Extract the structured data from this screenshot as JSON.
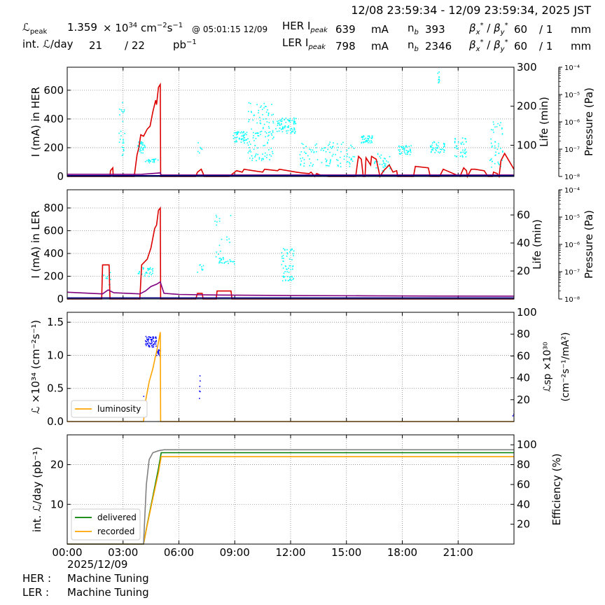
{
  "header": {
    "time_range": "12/08 23:59:34 - 12/09 23:59:34, 2025 JST",
    "lpeak_label": "ℒ",
    "lpeak_sub": "peak",
    "lpeak_value": "1.359",
    "lpeak_unit_pre": "× 10",
    "lpeak_exp": "34",
    "lpeak_unit": "cm",
    "lpeak_unit_exp1": "−2",
    "lpeak_unit_s": "s",
    "lpeak_unit_exp2": "−1",
    "lpeak_at": "@ 05:01:15 12/09",
    "intl_label": "int. ℒ/day",
    "intl_value1": "21",
    "intl_slash": "/ 22",
    "intl_unit": "pb",
    "intl_unit_exp": "−1",
    "her_label": "HER I",
    "her_sub": "peak",
    "her_value": "639",
    "her_unit": "mA",
    "ler_label": "LER I",
    "ler_sub": "peak",
    "ler_value": "798",
    "ler_unit": "mA",
    "nb_label": "n",
    "nb_sub": "b",
    "her_nb": "393",
    "ler_nb": "2346",
    "beta_label": "β",
    "beta_x": "x",
    "beta_y": "y",
    "beta_star": "*",
    "beta_slash": " / ",
    "her_beta": "60",
    "her_beta2": "/ 1",
    "ler_beta": "60",
    "ler_beta2": "/ 1",
    "beta_unit": "mm"
  },
  "footer": {
    "date": "2025/12/09",
    "her_status_label": "HER :",
    "her_status": "Machine Tuning",
    "ler_status_label": "LER :",
    "ler_status": "Machine Tuning"
  },
  "colors": {
    "current": "#dd0000",
    "purple": "#800080",
    "navy": "#000080",
    "cyan": "#00ffff",
    "blue": "#0000ff",
    "orange": "#ffa500",
    "green": "#008000",
    "gray": "#808080",
    "grid": "#808080"
  },
  "chart_data": [
    {
      "id": "her",
      "type": "line",
      "ylabel": "I (mA) in HER",
      "ylim": [
        0,
        760
      ],
      "yticks": [
        0,
        200,
        400,
        600
      ],
      "y2label": "Life (min)",
      "y2lim": [
        20,
        300
      ],
      "y2ticks": [
        100,
        200,
        300
      ],
      "y3label": "Pressure (Pa)",
      "y3ticks": [
        "10⁻⁸",
        "10⁻⁷",
        "10⁻⁶",
        "10⁻⁵",
        "10⁻⁴"
      ],
      "xlim": [
        0,
        24
      ],
      "xticks": [
        "00:00",
        "03:00",
        "06:00",
        "09:00",
        "12:00",
        "15:00",
        "18:00",
        "21:00"
      ],
      "grid": true,
      "series": [
        {
          "role": "current",
          "color": "#dd0000",
          "x": [
            0,
            2.3,
            2.32,
            2.45,
            2.47,
            3.6,
            3.75,
            3.85,
            3.95,
            4.1,
            4.3,
            4.45,
            4.6,
            4.75,
            4.8,
            4.9,
            5.0,
            5.02,
            5.05,
            6.9,
            7.0,
            7.1,
            7.2,
            7.3,
            7.35,
            8.7,
            9.0,
            9.1,
            9.4,
            9.5,
            10.0,
            10.5,
            10.6,
            11.3,
            11.4,
            12.3,
            12.6,
            13.0,
            13.1,
            13.3,
            13.4,
            13.6,
            14.0,
            15.5,
            15.6,
            15.65,
            15.8,
            15.9,
            16.0,
            16.05,
            16.3,
            16.35,
            16.6,
            16.8,
            17.0,
            17.3,
            17.5,
            17.7,
            17.75,
            18.6,
            18.7,
            19.4,
            19.5,
            20.0,
            20.2,
            21.1,
            21.3,
            21.45,
            21.5,
            21.7,
            21.9,
            22.4,
            22.6,
            22.85,
            22.9,
            23.1,
            23.2,
            23.3,
            23.5,
            24
          ],
          "y": [
            0,
            0,
            40,
            60,
            0,
            0,
            150,
            200,
            290,
            280,
            330,
            350,
            450,
            530,
            500,
            620,
            640,
            0,
            0,
            0,
            30,
            40,
            50,
            20,
            0,
            0,
            30,
            40,
            30,
            50,
            40,
            30,
            50,
            40,
            50,
            30,
            25,
            20,
            30,
            0,
            20,
            10,
            0,
            0,
            100,
            140,
            120,
            0,
            0,
            130,
            80,
            140,
            120,
            0,
            40,
            80,
            30,
            40,
            0,
            0,
            70,
            60,
            0,
            0,
            50,
            0,
            60,
            40,
            0,
            50,
            50,
            40,
            0,
            0,
            30,
            20,
            0,
            110,
            160,
            50
          ]
        },
        {
          "role": "baseline",
          "color": "#800080",
          "x": [
            0,
            3.5,
            4.0,
            4.5,
            5.0,
            5.05,
            24
          ],
          "y": [
            15,
            14,
            15,
            20,
            25,
            10,
            10
          ]
        },
        {
          "role": "baseline2",
          "color": "#000080",
          "x": [
            0,
            24
          ],
          "y": [
            6,
            6
          ]
        }
      ],
      "scatter_groups": [
        {
          "axis": "right",
          "color": "#00ffff",
          "x": [
            2.75,
            3.1
          ],
          "y": [
            60,
            210
          ],
          "n": 25
        },
        {
          "axis": "right",
          "color": "#00ffff",
          "x": [
            3.8,
            4.2
          ],
          "y": [
            80,
            110
          ],
          "n": 30
        },
        {
          "axis": "right",
          "color": "#00ffff",
          "x": [
            4.2,
            4.9
          ],
          "y": [
            55,
            65
          ],
          "n": 20
        },
        {
          "axis": "right",
          "color": "#00ffff",
          "x": [
            7.0,
            7.3
          ],
          "y": [
            80,
            110
          ],
          "n": 6
        },
        {
          "axis": "right",
          "color": "#00ffff",
          "x": [
            8.9,
            9.7
          ],
          "y": [
            105,
            135
          ],
          "n": 50
        },
        {
          "axis": "right",
          "color": "#00ffff",
          "x": [
            9.7,
            11.1
          ],
          "y": [
            60,
            210
          ],
          "n": 120
        },
        {
          "axis": "right",
          "color": "#00ffff",
          "x": [
            11.2,
            12.3
          ],
          "y": [
            130,
            170
          ],
          "n": 80
        },
        {
          "axis": "right",
          "color": "#00ffff",
          "x": [
            12.5,
            15.5
          ],
          "y": [
            45,
            110
          ],
          "n": 100
        },
        {
          "axis": "right",
          "color": "#00ffff",
          "x": [
            15.8,
            16.4
          ],
          "y": [
            105,
            125
          ],
          "n": 40
        },
        {
          "axis": "right",
          "color": "#00ffff",
          "x": [
            16.5,
            17.4
          ],
          "y": [
            20,
            80
          ],
          "n": 40
        },
        {
          "axis": "right",
          "color": "#00ffff",
          "x": [
            17.8,
            18.5
          ],
          "y": [
            75,
            100
          ],
          "n": 40
        },
        {
          "axis": "right",
          "color": "#00ffff",
          "x": [
            19.5,
            20.3
          ],
          "y": [
            80,
            110
          ],
          "n": 40
        },
        {
          "axis": "right",
          "color": "#00ffff",
          "x": [
            20.8,
            21.5
          ],
          "y": [
            70,
            120
          ],
          "n": 40
        },
        {
          "axis": "right",
          "color": "#00ffff",
          "x": [
            22.7,
            23.4
          ],
          "y": [
            40,
            160
          ],
          "n": 45
        },
        {
          "axis": "right",
          "color": "#00ffff",
          "x": [
            19.9,
            20.0
          ],
          "y": [
            260,
            300
          ],
          "n": 10
        }
      ]
    },
    {
      "id": "ler",
      "type": "line",
      "ylabel": "I (mA) in LER",
      "ylim": [
        0,
        960
      ],
      "yticks": [
        0,
        200,
        400,
        600,
        800
      ],
      "y2label": "Life (min)",
      "y2lim": [
        0,
        78
      ],
      "y2ticks": [
        20,
        40,
        60
      ],
      "y3label": "Pressure (Pa)",
      "y3ticks": [
        "10⁻⁸",
        "10⁻⁷",
        "10⁻⁶",
        "10⁻⁵",
        "10⁻⁴"
      ],
      "xlim": [
        0,
        24
      ],
      "xticks": [
        "00:00",
        "03:00",
        "06:00",
        "09:00",
        "12:00",
        "15:00",
        "18:00",
        "21:00"
      ],
      "grid": true,
      "series": [
        {
          "role": "current",
          "color": "#dd0000",
          "x": [
            0,
            1.85,
            1.9,
            2.1,
            2.25,
            2.3,
            3.9,
            4.0,
            4.3,
            4.5,
            4.7,
            4.8,
            4.9,
            5.0,
            5.02,
            6.9,
            7.0,
            7.25,
            7.3,
            8.0,
            8.05,
            8.8,
            8.85,
            24
          ],
          "y": [
            0,
            0,
            300,
            300,
            300,
            0,
            0,
            300,
            350,
            450,
            620,
            650,
            780,
            800,
            0,
            0,
            50,
            50,
            0,
            0,
            70,
            70,
            0,
            0
          ]
        },
        {
          "role": "baseline",
          "color": "#800080",
          "x": [
            0,
            1.9,
            2.2,
            2.5,
            3.9,
            4.2,
            4.5,
            4.8,
            5.0,
            5.2,
            6.0,
            8.0,
            12.0,
            16.0,
            20.0,
            24.0
          ],
          "y": [
            60,
            45,
            80,
            55,
            45,
            70,
            110,
            130,
            150,
            50,
            40,
            35,
            30,
            28,
            26,
            25
          ]
        },
        {
          "role": "baseline2",
          "color": "#000080",
          "x": [
            0,
            24
          ],
          "y": [
            10,
            10
          ]
        }
      ],
      "scatter_groups": [
        {
          "axis": "right",
          "color": "#00ffff",
          "x": [
            1.9,
            2.4
          ],
          "y": [
            10,
            20
          ],
          "n": 12
        },
        {
          "axis": "right",
          "color": "#00ffff",
          "x": [
            3.8,
            4.6
          ],
          "y": [
            16,
            23
          ],
          "n": 30
        },
        {
          "axis": "right",
          "color": "#00ffff",
          "x": [
            7.0,
            7.4
          ],
          "y": [
            19,
            25
          ],
          "n": 8
        },
        {
          "axis": "right",
          "color": "#00ffff",
          "x": [
            8.0,
            9.0
          ],
          "y": [
            25,
            30
          ],
          "n": 25
        },
        {
          "axis": "right",
          "color": "#00ffff",
          "x": [
            7.9,
            8.8
          ],
          "y": [
            30,
            64
          ],
          "n": 18
        },
        {
          "axis": "right",
          "color": "#00ffff",
          "x": [
            11.5,
            12.2
          ],
          "y": [
            13,
            36
          ],
          "n": 60
        }
      ]
    },
    {
      "id": "lum",
      "type": "line",
      "ylabel": "ℒ ×10³⁴ (cm⁻²s⁻¹)",
      "ylim": [
        0,
        1.65
      ],
      "yticks": [
        0.0,
        0.5,
        1.0,
        1.5
      ],
      "y2label": "ℒsp ×10³⁰ (cm⁻²s⁻¹/mA²)",
      "y2lim": [
        0,
        100
      ],
      "y2ticks": [
        20,
        40,
        60,
        80,
        100
      ],
      "xlim": [
        0,
        24
      ],
      "xticks": [
        "00:00",
        "03:00",
        "06:00",
        "09:00",
        "12:00",
        "15:00",
        "18:00",
        "21:00"
      ],
      "grid": true,
      "legend": {
        "position": "lower-left",
        "entries": [
          {
            "name": "luminosity",
            "color": "#ffa500"
          }
        ]
      },
      "series": [
        {
          "name": "luminosity",
          "color": "#ffa500",
          "x": [
            0,
            4.1,
            4.2,
            4.4,
            4.6,
            4.75,
            4.8,
            4.9,
            5.0,
            5.02,
            24
          ],
          "y": [
            0,
            0,
            0.3,
            0.6,
            0.8,
            1.0,
            1.05,
            1.2,
            1.35,
            0,
            0
          ]
        }
      ],
      "scatter_groups": [
        {
          "axis": "right",
          "color": "#0000ff",
          "x": [
            4.2,
            4.8
          ],
          "y": [
            68,
            78
          ],
          "n": 60
        },
        {
          "axis": "right",
          "color": "#0000ff",
          "x": [
            4.8,
            5.0
          ],
          "y": [
            60,
            66
          ],
          "n": 15
        },
        {
          "axis": "right",
          "color": "#0000ff",
          "x": [
            4.1,
            4.2
          ],
          "y": [
            2,
            30
          ],
          "n": 4
        },
        {
          "axis": "right",
          "color": "#0000ff",
          "x": [
            7.1,
            7.15
          ],
          "y": [
            7,
            50
          ],
          "n": 6
        },
        {
          "axis": "right",
          "color": "#0000ff",
          "x": [
            23.9,
            24.0
          ],
          "y": [
            5,
            7
          ],
          "n": 2
        }
      ]
    },
    {
      "id": "intl",
      "type": "line",
      "ylabel": "int. ℒ/day (pb⁻¹)",
      "ylim": [
        0,
        27.5
      ],
      "yticks": [
        10,
        20
      ],
      "y2label": "Efficiency (%)",
      "y2lim": [
        0,
        110
      ],
      "y2ticks": [
        20,
        40,
        60,
        80,
        100
      ],
      "xlim": [
        0,
        24
      ],
      "xticks": [
        "00:00",
        "03:00",
        "06:00",
        "09:00",
        "12:00",
        "15:00",
        "18:00",
        "21:00"
      ],
      "grid": true,
      "legend": {
        "position": "lower-left",
        "entries": [
          {
            "name": "delivered",
            "color": "#008000"
          },
          {
            "name": "recorded",
            "color": "#ffa500"
          }
        ]
      },
      "series": [
        {
          "name": "delivered",
          "color": "#008000",
          "x": [
            0,
            4.1,
            4.3,
            4.6,
            4.9,
            5.05,
            24
          ],
          "y": [
            0,
            0,
            5,
            12,
            19,
            23,
            23
          ]
        },
        {
          "name": "recorded",
          "color": "#ffa500",
          "x": [
            0,
            4.1,
            4.3,
            4.6,
            4.9,
            5.05,
            24
          ],
          "y": [
            0,
            0,
            4.8,
            11.5,
            18,
            22,
            22
          ]
        },
        {
          "name": "efficiency",
          "color": "#808080",
          "axis": "right",
          "x": [
            0,
            4.1,
            4.15,
            4.25,
            4.4,
            4.6,
            4.9,
            5.2,
            24
          ],
          "y": [
            0,
            0,
            20,
            60,
            85,
            92,
            94,
            95,
            95
          ]
        }
      ]
    }
  ]
}
